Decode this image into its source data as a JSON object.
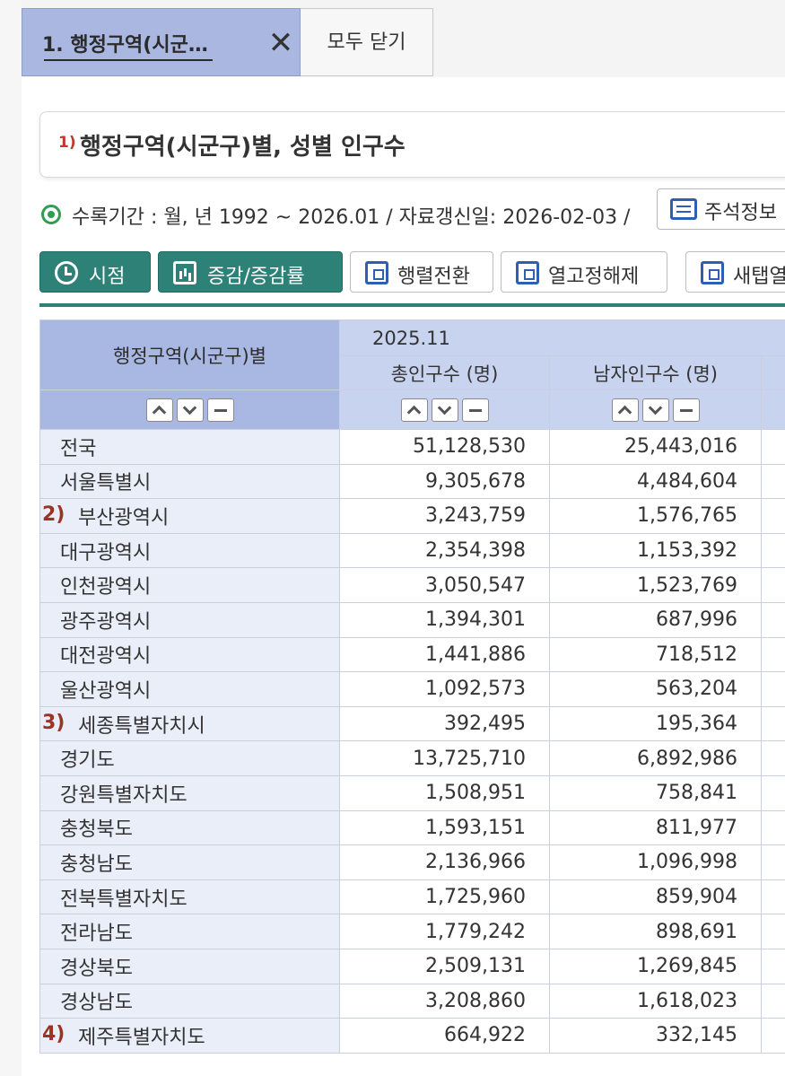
{
  "tabs": {
    "active_label": "1. 행정구역(시군…",
    "close_all_label": "모두 닫기"
  },
  "title": {
    "number": "1)",
    "text": "행정구역(시군구)별, 성별 인구수"
  },
  "meta": {
    "text": "수록기간 : 월, 년 1992 ~ 2026.01 / 자료갱신일: 2026-02-03 /",
    "note_button_label": "주석정보"
  },
  "toolbar": {
    "time_label": "시점",
    "change_label": "증감/증감률",
    "pivot_label": "행렬전환",
    "unfreeze_label": "열고정해제",
    "newtab_label": "새탭열"
  },
  "table": {
    "stub_header": "행정구역(시군구)별",
    "period": "2025.11",
    "columns": [
      "총인구수 (명)",
      "남자인구수 (명)"
    ],
    "rows": [
      {
        "marker": "",
        "name": "전국",
        "total": "51,128,530",
        "male": "25,443,016"
      },
      {
        "marker": "",
        "name": "서울특별시",
        "total": "9,305,678",
        "male": "4,484,604"
      },
      {
        "marker": "2)",
        "name": "부산광역시",
        "total": "3,243,759",
        "male": "1,576,765"
      },
      {
        "marker": "",
        "name": "대구광역시",
        "total": "2,354,398",
        "male": "1,153,392"
      },
      {
        "marker": "",
        "name": "인천광역시",
        "total": "3,050,547",
        "male": "1,523,769"
      },
      {
        "marker": "",
        "name": "광주광역시",
        "total": "1,394,301",
        "male": "687,996"
      },
      {
        "marker": "",
        "name": "대전광역시",
        "total": "1,441,886",
        "male": "718,512"
      },
      {
        "marker": "",
        "name": "울산광역시",
        "total": "1,092,573",
        "male": "563,204"
      },
      {
        "marker": "3)",
        "name": "세종특별자치시",
        "total": "392,495",
        "male": "195,364"
      },
      {
        "marker": "",
        "name": "경기도",
        "total": "13,725,710",
        "male": "6,892,986"
      },
      {
        "marker": "",
        "name": "강원특별자치도",
        "total": "1,508,951",
        "male": "758,841"
      },
      {
        "marker": "",
        "name": "충청북도",
        "total": "1,593,151",
        "male": "811,977"
      },
      {
        "marker": "",
        "name": "충청남도",
        "total": "2,136,966",
        "male": "1,096,998"
      },
      {
        "marker": "",
        "name": "전북특별자치도",
        "total": "1,725,960",
        "male": "859,904"
      },
      {
        "marker": "",
        "name": "전라남도",
        "total": "1,779,242",
        "male": "898,691"
      },
      {
        "marker": "",
        "name": "경상북도",
        "total": "2,509,131",
        "male": "1,269,845"
      },
      {
        "marker": "",
        "name": "경상남도",
        "total": "3,208,860",
        "male": "1,618,023"
      },
      {
        "marker": "4)",
        "name": "제주특별자치도",
        "total": "664,922",
        "male": "332,145"
      }
    ]
  },
  "colors": {
    "tab_active": "#a9b7e1",
    "toolbar_green": "#2d8177",
    "header_blue": "#c7d3ef",
    "stub_bg": "#e9eef8",
    "marker_red": "#9a3324",
    "highlight": "#f88c64"
  },
  "highlighted_row": "울산광역시"
}
